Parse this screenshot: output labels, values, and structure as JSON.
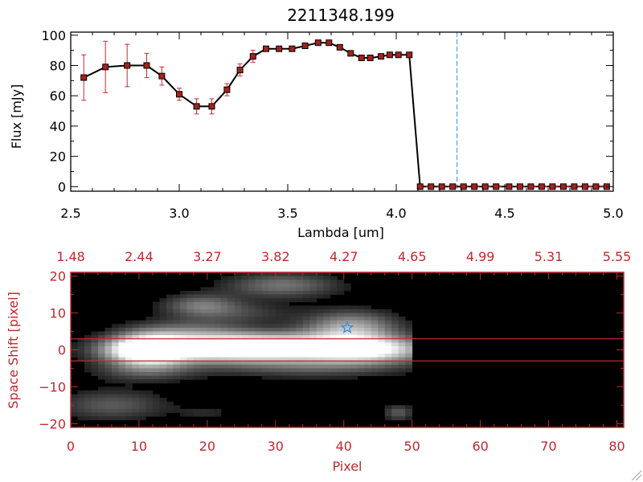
{
  "colors": {
    "accent_red": "#c0282e",
    "line": "#000000",
    "marker": "#a3221e",
    "error_bar": "#d0282e",
    "dashed_marker": "#3a8fd8",
    "star": "#2f8fe0",
    "image_background": "#000000"
  },
  "chart_data": [
    {
      "type": "line",
      "title": "2211348.199",
      "xlabel": "Lambda [um]",
      "ylabel": "Flux [mJy]",
      "xlim": [
        2.5,
        5.0
      ],
      "ylim": [
        -3,
        102
      ],
      "xticks": [
        {
          "value": 2.5,
          "label": "2.5"
        },
        {
          "value": 3.0,
          "label": "3.0"
        },
        {
          "value": 3.5,
          "label": "3.5"
        },
        {
          "value": 4.0,
          "label": "4.0"
        },
        {
          "value": 4.5,
          "label": "4.5"
        },
        {
          "value": 5.0,
          "label": "5.0"
        }
      ],
      "yticks": [
        {
          "value": 0,
          "label": "0"
        },
        {
          "value": 20,
          "label": "20"
        },
        {
          "value": 40,
          "label": "40"
        },
        {
          "value": 60,
          "label": "60"
        },
        {
          "value": 80,
          "label": "80"
        },
        {
          "value": 100,
          "label": "100"
        }
      ],
      "vline_x": 4.28,
      "grid": false,
      "series": [
        {
          "x": [
            2.56,
            2.66,
            2.76,
            2.85,
            2.92,
            3.0,
            3.08,
            3.15,
            3.22,
            3.28,
            3.34,
            3.4,
            3.46,
            3.52,
            3.58,
            3.64,
            3.69,
            3.74,
            3.79,
            3.84,
            3.88,
            3.93,
            3.97,
            4.01,
            4.06,
            4.11,
            4.16,
            4.21,
            4.26,
            4.31,
            4.36,
            4.41,
            4.46,
            4.52,
            4.57,
            4.62,
            4.67,
            4.72,
            4.77,
            4.82,
            4.87,
            4.92,
            4.97
          ],
          "y": [
            72,
            79,
            80,
            80,
            73,
            61,
            53,
            53,
            64,
            77,
            86,
            91,
            91,
            91,
            93,
            95,
            95,
            92,
            88,
            85,
            85,
            86,
            87,
            87,
            87,
            0,
            0,
            0,
            0,
            0,
            0,
            0,
            0,
            0,
            0,
            0,
            0,
            0,
            0,
            0,
            0,
            0,
            0
          ],
          "yerr": [
            15,
            17,
            14,
            8,
            6,
            4,
            5,
            5,
            4,
            4,
            4,
            1,
            1,
            1,
            1,
            1,
            1,
            1,
            1,
            1,
            1,
            1,
            1,
            1,
            1,
            0,
            0,
            0,
            0,
            0,
            0,
            0,
            0,
            0,
            0,
            0,
            0,
            0,
            0,
            0,
            0,
            0,
            0
          ]
        }
      ]
    },
    {
      "type": "heatmap",
      "xlabel": "Pixel",
      "ylabel": "Space Shift [pixel]",
      "xlim": [
        0,
        81
      ],
      "ylim": [
        -21,
        21
      ],
      "xticks": [
        {
          "value": 0,
          "label": "0"
        },
        {
          "value": 10,
          "label": "10"
        },
        {
          "value": 20,
          "label": "20"
        },
        {
          "value": 30,
          "label": "30"
        },
        {
          "value": 40,
          "label": "40"
        },
        {
          "value": 50,
          "label": "50"
        },
        {
          "value": 60,
          "label": "60"
        },
        {
          "value": 70,
          "label": "70"
        },
        {
          "value": 80,
          "label": "80"
        }
      ],
      "yticks": [
        {
          "value": -20,
          "label": "−20"
        },
        {
          "value": -10,
          "label": "−10"
        },
        {
          "value": 0,
          "label": "0"
        },
        {
          "value": 10,
          "label": "10"
        },
        {
          "value": 20,
          "label": "20"
        }
      ],
      "top_ticks": [
        {
          "value": 0,
          "label": "1.48"
        },
        {
          "value": 10,
          "label": "2.44"
        },
        {
          "value": 20,
          "label": "3.27"
        },
        {
          "value": 30,
          "label": "3.82"
        },
        {
          "value": 40,
          "label": "4.27"
        },
        {
          "value": 50,
          "label": "4.65"
        },
        {
          "value": 60,
          "label": "4.99"
        },
        {
          "value": 70,
          "label": "5.31"
        },
        {
          "value": 80,
          "label": "5.55"
        }
      ],
      "hlines_y": [
        3,
        -3
      ],
      "star": {
        "x": 40.5,
        "y": 6
      },
      "blobs": [
        {
          "x": 11,
          "y": 0,
          "sx": 4,
          "sy": 3.2,
          "a": 1.0
        },
        {
          "x": 20,
          "y": 0,
          "sx": 10,
          "sy": 2.4,
          "a": 0.75
        },
        {
          "x": 32,
          "y": 0,
          "sx": 11,
          "sy": 2.4,
          "a": 0.7
        },
        {
          "x": 44,
          "y": 0,
          "sx": 6,
          "sy": 2.6,
          "a": 0.7
        },
        {
          "x": 41,
          "y": 6,
          "sx": 5,
          "sy": 3.2,
          "a": 0.65
        },
        {
          "x": 28,
          "y": 3,
          "sx": 8,
          "sy": 2,
          "a": 0.3
        },
        {
          "x": 18,
          "y": 5,
          "sx": 6,
          "sy": 2.5,
          "a": 0.35
        },
        {
          "x": 19,
          "y": 12,
          "sx": 4,
          "sy": 2.2,
          "a": 0.45
        },
        {
          "x": 31,
          "y": 17.5,
          "sx": 6,
          "sy": 2.5,
          "a": 0.45
        },
        {
          "x": 26,
          "y": 10,
          "sx": 5,
          "sy": 2,
          "a": 0.2
        },
        {
          "x": 11,
          "y": -6,
          "sx": 6,
          "sy": 2,
          "a": 0.25
        },
        {
          "x": 35,
          "y": -5,
          "sx": 10,
          "sy": 2,
          "a": 0.3
        },
        {
          "x": 6,
          "y": -15,
          "sx": 6,
          "sy": 3,
          "a": 0.35
        },
        {
          "x": 48,
          "y": -17,
          "sx": 1.6,
          "sy": 1.6,
          "a": 0.35
        },
        {
          "x": 20,
          "y": -17,
          "sx": 3,
          "sy": 1.4,
          "a": 0.15
        }
      ]
    }
  ]
}
